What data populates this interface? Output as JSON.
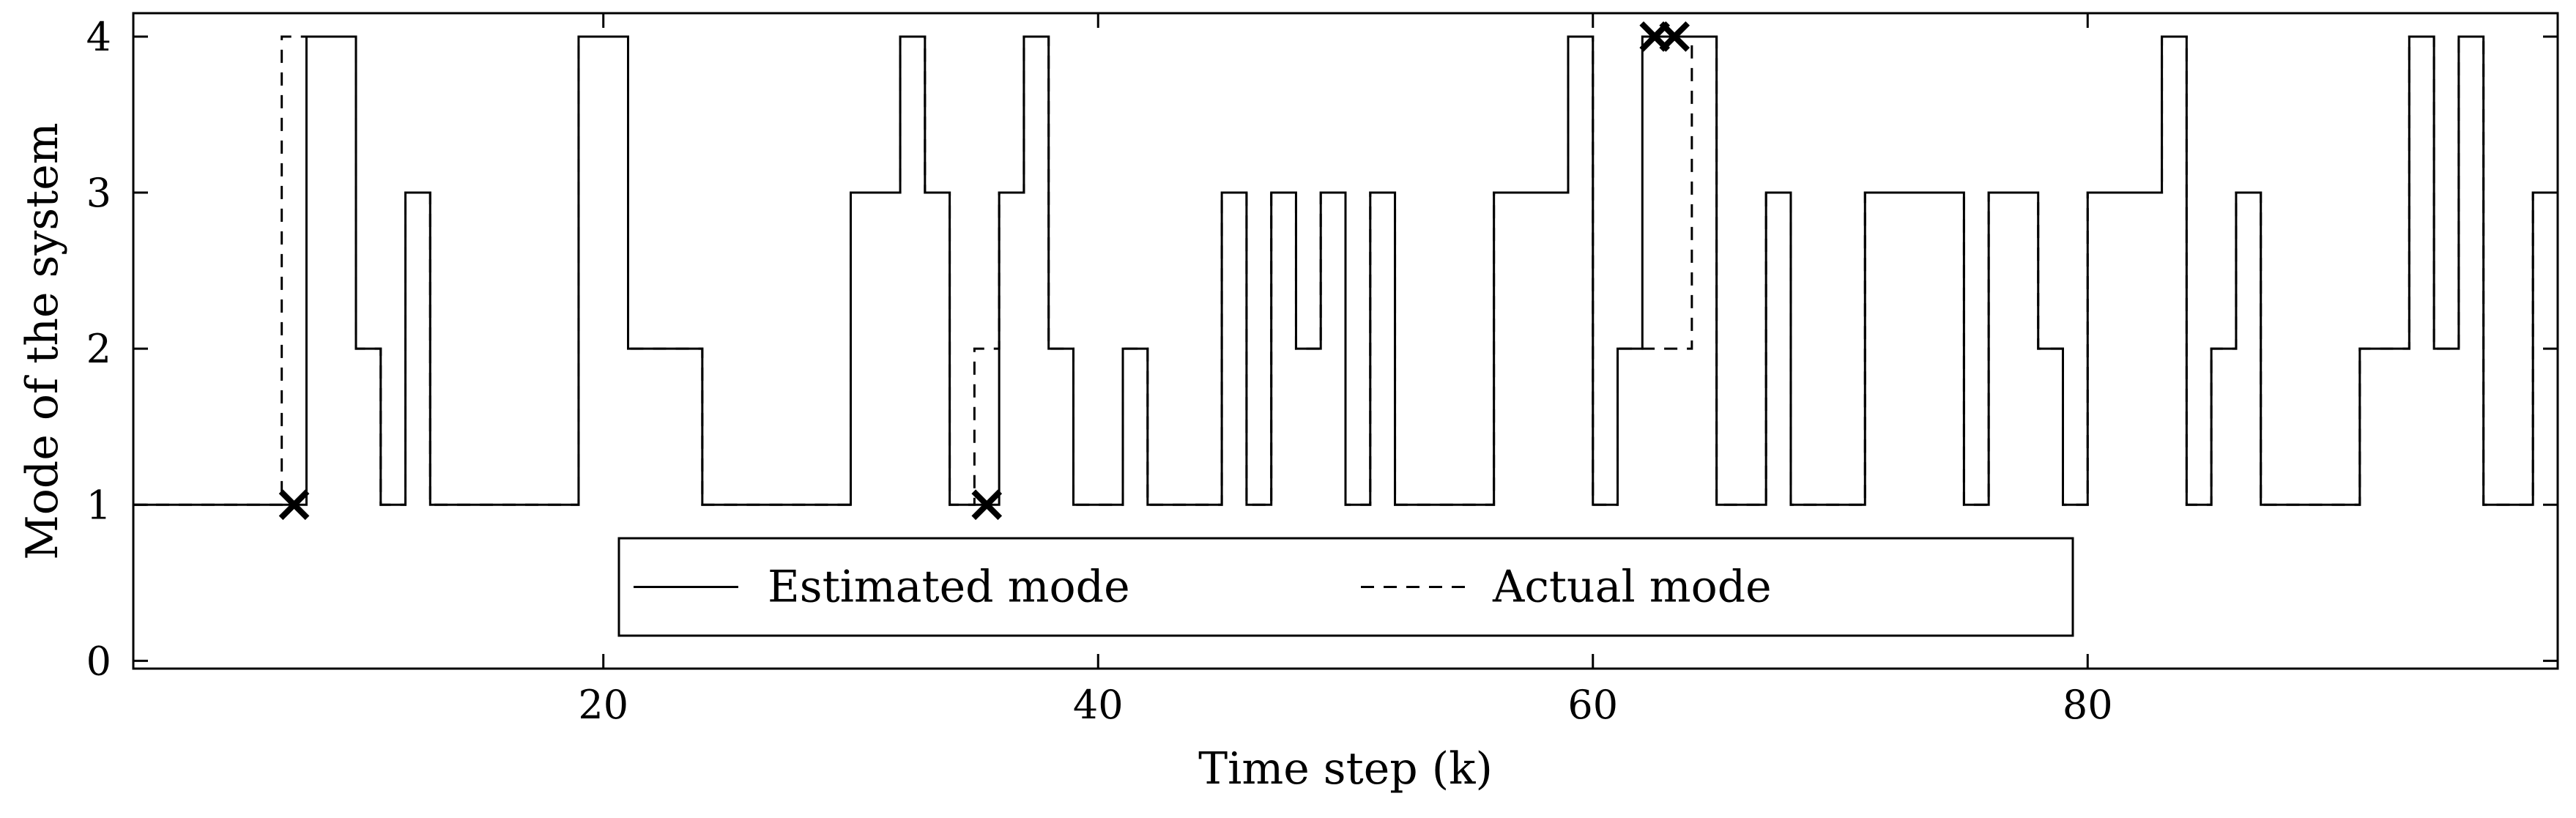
{
  "chart_data": {
    "type": "line",
    "title": "",
    "xlabel": "Time step (k)",
    "ylabel": "Mode of the system",
    "xlim": [
      1,
      99
    ],
    "ylim": [
      -0.05,
      4.15
    ],
    "xticks": [
      20,
      40,
      60,
      80
    ],
    "yticks": [
      0,
      1,
      2,
      3,
      4
    ],
    "grid": false,
    "step": "post",
    "legend": {
      "placement": "bottom-center",
      "entries": [
        {
          "label": "Estimated mode",
          "style": "solid"
        },
        {
          "label": "Actual mode",
          "style": "dashed"
        }
      ]
    },
    "series": [
      {
        "name": "Estimated mode",
        "style": "solid",
        "x": [
          1,
          2,
          3,
          4,
          5,
          6,
          7,
          8,
          9,
          10,
          11,
          12,
          13,
          14,
          15,
          16,
          17,
          18,
          19,
          20,
          21,
          22,
          23,
          24,
          25,
          26,
          27,
          28,
          29,
          30,
          31,
          32,
          33,
          34,
          35,
          36,
          37,
          38,
          39,
          40,
          41,
          42,
          43,
          44,
          45,
          46,
          47,
          48,
          49,
          50,
          51,
          52,
          53,
          54,
          55,
          56,
          57,
          58,
          59,
          60,
          61,
          62,
          63,
          64,
          65,
          66,
          67,
          68,
          69,
          70,
          71,
          72,
          73,
          74,
          75,
          76,
          77,
          78,
          79,
          80,
          81,
          82,
          83,
          84,
          85,
          86,
          87,
          88,
          89,
          90,
          91,
          92,
          93,
          94,
          95,
          96,
          97,
          98,
          99
        ],
        "y": [
          1,
          1,
          1,
          1,
          1,
          1,
          1,
          4,
          4,
          2,
          1,
          3,
          1,
          1,
          1,
          1,
          1,
          1,
          4,
          4,
          2,
          2,
          2,
          1,
          1,
          1,
          1,
          1,
          1,
          3,
          3,
          4,
          3,
          1,
          1,
          3,
          4,
          2,
          1,
          1,
          2,
          1,
          1,
          1,
          3,
          1,
          3,
          2,
          3,
          1,
          3,
          1,
          1,
          1,
          1,
          3,
          3,
          3,
          4,
          1,
          2,
          4,
          4,
          4,
          1,
          1,
          3,
          1,
          1,
          1,
          3,
          3,
          3,
          3,
          1,
          3,
          3,
          2,
          1,
          3,
          3,
          3,
          4,
          1,
          2,
          3,
          1,
          1,
          1,
          1,
          2,
          2,
          4,
          2,
          4,
          1,
          1,
          3,
          1
        ]
      },
      {
        "name": "Actual mode",
        "style": "dashed",
        "x": [
          1,
          2,
          3,
          4,
          5,
          6,
          7,
          8,
          9,
          10,
          11,
          12,
          13,
          14,
          15,
          16,
          17,
          18,
          19,
          20,
          21,
          22,
          23,
          24,
          25,
          26,
          27,
          28,
          29,
          30,
          31,
          32,
          33,
          34,
          35,
          36,
          37,
          38,
          39,
          40,
          41,
          42,
          43,
          44,
          45,
          46,
          47,
          48,
          49,
          50,
          51,
          52,
          53,
          54,
          55,
          56,
          57,
          58,
          59,
          60,
          61,
          62,
          63,
          64,
          65,
          66,
          67,
          68,
          69,
          70,
          71,
          72,
          73,
          74,
          75,
          76,
          77,
          78,
          79,
          80,
          81,
          82,
          83,
          84,
          85,
          86,
          87,
          88,
          89,
          90,
          91,
          92,
          93,
          94,
          95,
          96,
          97,
          98,
          99
        ],
        "y": [
          1,
          1,
          1,
          1,
          1,
          1,
          4,
          4,
          4,
          2,
          1,
          3,
          1,
          1,
          1,
          1,
          1,
          1,
          4,
          4,
          2,
          2,
          2,
          1,
          1,
          1,
          1,
          1,
          1,
          3,
          3,
          4,
          3,
          1,
          2,
          3,
          4,
          2,
          1,
          1,
          2,
          1,
          1,
          1,
          3,
          1,
          3,
          2,
          3,
          1,
          3,
          1,
          1,
          1,
          1,
          3,
          3,
          3,
          4,
          1,
          2,
          2,
          2,
          4,
          1,
          1,
          3,
          1,
          1,
          1,
          3,
          3,
          3,
          3,
          1,
          3,
          3,
          2,
          1,
          3,
          3,
          3,
          4,
          1,
          2,
          3,
          1,
          1,
          1,
          1,
          2,
          2,
          4,
          2,
          4,
          1,
          1,
          3,
          1
        ]
      }
    ],
    "markers": {
      "symbol": "x",
      "points": [
        {
          "x": 7.5,
          "y": 1
        },
        {
          "x": 35.5,
          "y": 1
        },
        {
          "x": 62.5,
          "y": 4
        },
        {
          "x": 63.3,
          "y": 4
        }
      ]
    }
  }
}
